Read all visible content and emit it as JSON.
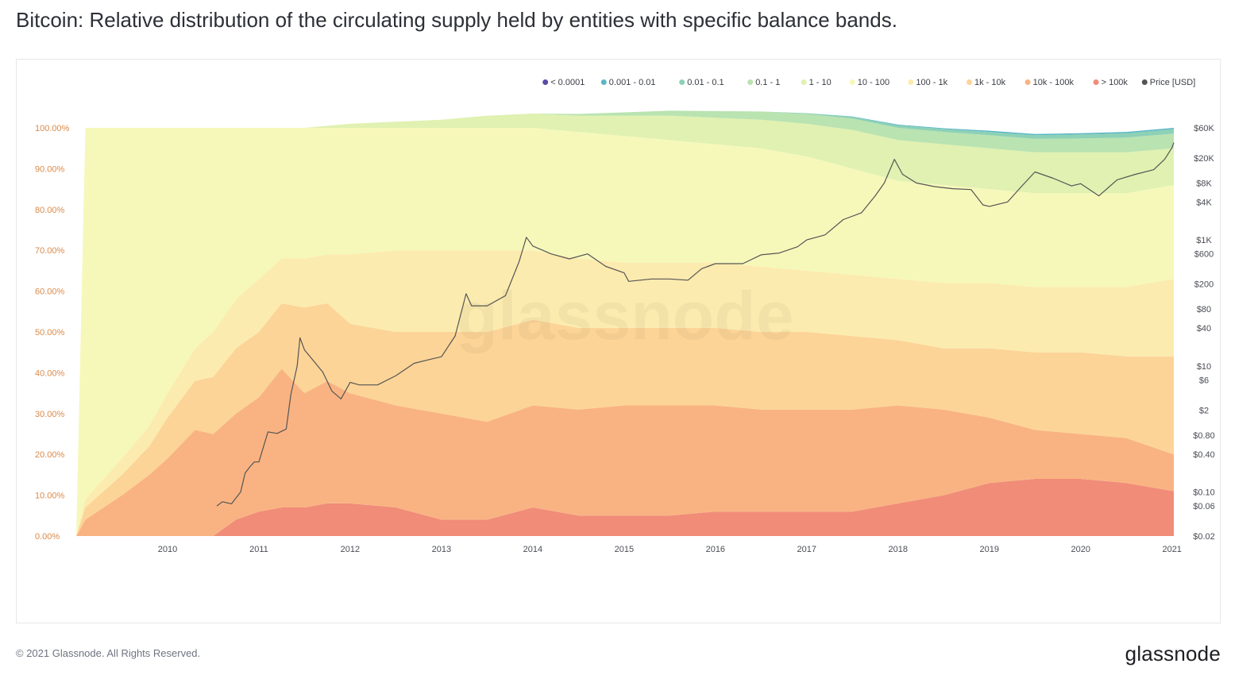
{
  "title": "Bitcoin: Relative distribution of the circulating supply held by entities with specific balance bands.",
  "footer": {
    "copyright": "© 2021 Glassnode. All Rights Reserved.",
    "logo": "glassnode"
  },
  "watermark": "glassnode",
  "chart_data": {
    "type": "area",
    "stacked": true,
    "grid": false,
    "legend_placement": "top-right",
    "x_ticks": [
      "2010",
      "2011",
      "2012",
      "2013",
      "2014",
      "2015",
      "2016",
      "2017",
      "2018",
      "2019",
      "2020",
      "2021"
    ],
    "xlim": [
      2009.0,
      2021.02
    ],
    "y_left_ticks": [
      "0.00%",
      "10.00%",
      "20.00%",
      "30.00%",
      "40.00%",
      "50.00%",
      "60.00%",
      "70.00%",
      "80.00%",
      "90.00%",
      "100.00%"
    ],
    "ylim_left": [
      0,
      100
    ],
    "y_right_ticks": [
      {
        "label": "$0.02",
        "value": 0.02
      },
      {
        "label": "$0.06",
        "value": 0.06
      },
      {
        "label": "$0.10",
        "value": 0.1
      },
      {
        "label": "$0.40",
        "value": 0.4
      },
      {
        "label": "$0.80",
        "value": 0.8
      },
      {
        "label": "$2",
        "value": 2
      },
      {
        "label": "$6",
        "value": 6
      },
      {
        "label": "$10",
        "value": 10
      },
      {
        "label": "$40",
        "value": 40
      },
      {
        "label": "$80",
        "value": 80
      },
      {
        "label": "$200",
        "value": 200
      },
      {
        "label": "$600",
        "value": 600
      },
      {
        "label": "$1K",
        "value": 1000
      },
      {
        "label": "$4K",
        "value": 4000
      },
      {
        "label": "$8K",
        "value": 8000
      },
      {
        "label": "$20K",
        "value": 20000
      },
      {
        "label": "$60K",
        "value": 60000
      }
    ],
    "y_right_scale": "log",
    "ylim_right": [
      0.02,
      60000
    ],
    "x": [
      2009.0,
      2009.1,
      2009.3,
      2009.5,
      2009.8,
      2010.0,
      2010.3,
      2010.5,
      2010.75,
      2011.0,
      2011.25,
      2011.5,
      2011.75,
      2012.0,
      2012.5,
      2013.0,
      2013.5,
      2014.0,
      2014.5,
      2015.0,
      2015.5,
      2016.0,
      2016.5,
      2017.0,
      2017.5,
      2018.0,
      2018.5,
      2019.0,
      2019.5,
      2020.0,
      2020.5,
      2021.02
    ],
    "series": [
      {
        "name": "> 100k",
        "color": "#f08c78",
        "values": [
          0,
          0,
          0,
          0,
          0,
          0,
          0,
          0,
          4,
          6,
          7,
          7,
          8,
          8,
          7,
          4,
          4,
          7,
          5,
          5,
          5,
          6,
          6,
          6,
          6,
          8,
          10,
          13,
          14,
          14,
          13,
          11
        ]
      },
      {
        "name": "10k - 100k",
        "color": "#f9b382",
        "values": [
          0,
          4,
          7,
          10,
          15,
          19,
          26,
          25,
          26,
          28,
          34,
          28,
          30,
          27,
          25,
          26,
          24,
          25,
          26,
          27,
          27,
          26,
          25,
          25,
          25,
          24,
          21,
          16,
          12,
          11,
          11,
          9
        ]
      },
      {
        "name": "1k - 10k",
        "color": "#fcd497",
        "values": [
          0,
          3,
          4,
          5,
          7,
          10,
          12,
          14,
          16,
          16,
          16,
          21,
          19,
          17,
          18,
          20,
          22,
          21,
          20,
          19,
          19,
          19,
          19,
          19,
          18,
          16,
          15,
          17,
          19,
          20,
          20,
          24
        ]
      },
      {
        "name": "100 - 1k",
        "color": "#fcebae",
        "values": [
          0,
          2,
          3,
          4,
          5,
          6,
          8,
          11,
          12,
          13,
          11,
          12,
          12,
          17,
          20,
          20,
          20,
          17,
          17,
          16,
          16,
          16,
          16,
          15,
          15,
          15,
          16,
          16,
          16,
          16,
          17,
          19
        ]
      },
      {
        "name": "10 - 100",
        "color": "#f6f8ba",
        "values": [
          0,
          91,
          86,
          81,
          73,
          65,
          54,
          50,
          42,
          37,
          32,
          32,
          31,
          31,
          30,
          30,
          30,
          30,
          31,
          31,
          30,
          29,
          29,
          28,
          26,
          24,
          24,
          23,
          23,
          23,
          23,
          23
        ]
      },
      {
        "name": "1 - 10",
        "color": "#e0f1b1",
        "values": [
          0,
          0,
          0,
          0,
          0,
          0,
          0,
          0,
          0,
          0,
          0,
          0,
          0.5,
          1,
          1.5,
          2,
          3,
          3.5,
          4,
          5,
          6,
          6.5,
          7,
          8,
          9.5,
          10,
          10,
          10,
          10,
          10,
          10,
          9
        ]
      },
      {
        "name": "0.1 - 1",
        "color": "#b9e3b0",
        "values": [
          0,
          0,
          0,
          0,
          0,
          0,
          0,
          0,
          0,
          0,
          0,
          0,
          0,
          0,
          0,
          0,
          0,
          0,
          0.4,
          0.8,
          1.2,
          1.6,
          2,
          2.4,
          2.8,
          3,
          3,
          3.2,
          3.3,
          3.4,
          3.6,
          3.6
        ]
      },
      {
        "name": "0.01 - 0.1",
        "color": "#8dd1b6",
        "values": [
          0,
          0,
          0,
          0,
          0,
          0,
          0,
          0,
          0,
          0,
          0,
          0,
          0,
          0,
          0,
          0,
          0,
          0,
          0,
          0,
          0,
          0,
          0,
          0.2,
          0.4,
          0.6,
          0.7,
          0.8,
          0.9,
          1,
          1.1,
          1.1
        ]
      },
      {
        "name": "0.001 - 0.01",
        "color": "#5bb6c5",
        "values": [
          0,
          0,
          0,
          0,
          0,
          0,
          0,
          0,
          0,
          0,
          0,
          0,
          0,
          0,
          0,
          0,
          0,
          0,
          0,
          0,
          0,
          0,
          0,
          0,
          0.1,
          0.2,
          0.2,
          0.3,
          0.3,
          0.3,
          0.3,
          0.3
        ]
      },
      {
        "name": "< 0.0001",
        "color": "#5b4ba6",
        "values": [
          0,
          0,
          0,
          0,
          0,
          0,
          0,
          0,
          0,
          0,
          0,
          0,
          0,
          0,
          0,
          0,
          0,
          0,
          0,
          0,
          0,
          0,
          0,
          0,
          0,
          0,
          0,
          0,
          0,
          0,
          0,
          0
        ]
      }
    ],
    "price_series": {
      "name": "Price [USD]",
      "color": "#555555",
      "points": [
        [
          2010.54,
          0.06
        ],
        [
          2010.6,
          0.07
        ],
        [
          2010.7,
          0.065
        ],
        [
          2010.8,
          0.1
        ],
        [
          2010.85,
          0.2
        ],
        [
          2010.9,
          0.25
        ],
        [
          2010.95,
          0.3
        ],
        [
          2011.0,
          0.3
        ],
        [
          2011.1,
          0.9
        ],
        [
          2011.2,
          0.85
        ],
        [
          2011.3,
          1.0
        ],
        [
          2011.35,
          3.5
        ],
        [
          2011.42,
          10
        ],
        [
          2011.45,
          28
        ],
        [
          2011.5,
          18
        ],
        [
          2011.6,
          12
        ],
        [
          2011.7,
          8
        ],
        [
          2011.8,
          4
        ],
        [
          2011.9,
          3
        ],
        [
          2012.0,
          5.5
        ],
        [
          2012.1,
          5
        ],
        [
          2012.3,
          5
        ],
        [
          2012.5,
          7
        ],
        [
          2012.7,
          11
        ],
        [
          2012.9,
          13
        ],
        [
          2013.0,
          14
        ],
        [
          2013.15,
          30
        ],
        [
          2013.27,
          140
        ],
        [
          2013.33,
          90
        ],
        [
          2013.5,
          90
        ],
        [
          2013.7,
          130
        ],
        [
          2013.85,
          450
        ],
        [
          2013.93,
          1100
        ],
        [
          2014.0,
          800
        ],
        [
          2014.2,
          600
        ],
        [
          2014.4,
          500
        ],
        [
          2014.6,
          600
        ],
        [
          2014.8,
          380
        ],
        [
          2015.0,
          300
        ],
        [
          2015.05,
          220
        ],
        [
          2015.3,
          240
        ],
        [
          2015.5,
          240
        ],
        [
          2015.7,
          230
        ],
        [
          2015.85,
          350
        ],
        [
          2016.0,
          420
        ],
        [
          2016.3,
          420
        ],
        [
          2016.5,
          580
        ],
        [
          2016.7,
          620
        ],
        [
          2016.9,
          780
        ],
        [
          2017.0,
          1000
        ],
        [
          2017.2,
          1200
        ],
        [
          2017.4,
          2100
        ],
        [
          2017.6,
          2700
        ],
        [
          2017.75,
          5000
        ],
        [
          2017.85,
          8000
        ],
        [
          2017.96,
          19000
        ],
        [
          2018.05,
          11000
        ],
        [
          2018.2,
          8000
        ],
        [
          2018.4,
          7000
        ],
        [
          2018.6,
          6500
        ],
        [
          2018.8,
          6300
        ],
        [
          2018.93,
          3600
        ],
        [
          2019.0,
          3400
        ],
        [
          2019.2,
          4000
        ],
        [
          2019.35,
          7000
        ],
        [
          2019.5,
          12000
        ],
        [
          2019.7,
          9500
        ],
        [
          2019.9,
          7200
        ],
        [
          2020.0,
          7800
        ],
        [
          2020.2,
          5000
        ],
        [
          2020.4,
          9000
        ],
        [
          2020.6,
          11000
        ],
        [
          2020.8,
          13000
        ],
        [
          2020.92,
          19000
        ],
        [
          2021.0,
          29000
        ],
        [
          2021.02,
          35000
        ]
      ]
    }
  }
}
